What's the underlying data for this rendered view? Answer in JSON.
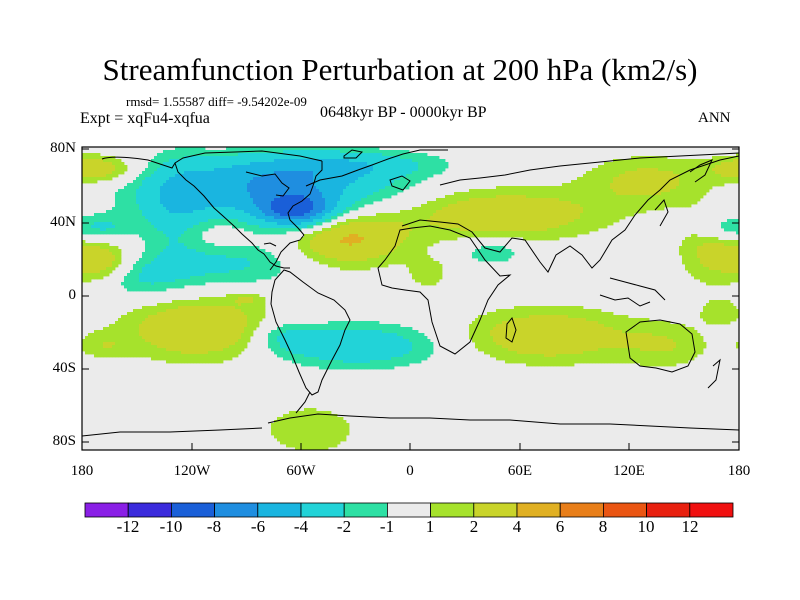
{
  "title": "Streamfunction Perturbation at 200 hPa (km2/s)",
  "stats": "rmsd= 1.55587 diff= -9.54202e-09",
  "experiment": "Expt = xqFu4-xqfua",
  "period": "0648kyr BP - 0000kyr BP",
  "season": "ANN",
  "lat_labels": [
    "80N",
    "40N",
    "0",
    "40S",
    "80S"
  ],
  "lon_labels": [
    "180",
    "120W",
    "60W",
    "0",
    "60E",
    "120E",
    "180"
  ],
  "colorbar": {
    "labels": [
      "-12",
      "-10",
      "-8",
      "-6",
      "-4",
      "-2",
      "-1",
      "1",
      "2",
      "4",
      "6",
      "8",
      "10",
      "12"
    ],
    "colors": [
      "#8a1fe6",
      "#3b2bdc",
      "#1a5fd8",
      "#1f8ee0",
      "#1ab5e0",
      "#22d3d8",
      "#2ee0a4",
      "#ebebeb",
      "#a6e22c",
      "#c9d42a",
      "#e0b023",
      "#e87e19",
      "#ea5512",
      "#e8200f",
      "#f01010"
    ]
  },
  "chart_data": {
    "type": "heatmap",
    "title": "Streamfunction Perturbation at 200 hPa (km2/s)",
    "projection": "cylindrical-equidistant",
    "lon_range": [
      -180,
      180
    ],
    "lat_range": [
      -90,
      90
    ],
    "levels": [
      -12,
      -10,
      -8,
      -6,
      -4,
      -2,
      -1,
      1,
      2,
      4,
      6,
      8,
      10,
      12
    ],
    "blobs": [
      {
        "lon": -80,
        "lat": 62,
        "rlon": 65,
        "rlat": 18,
        "value": -5
      },
      {
        "lon": -62,
        "lat": 52,
        "rlon": 20,
        "rlat": 10,
        "value": -7
      },
      {
        "lon": -65,
        "lat": 75,
        "rlon": 55,
        "rlat": 12,
        "value": -2.5
      },
      {
        "lon": -30,
        "lat": 80,
        "rlon": 50,
        "rlat": 8,
        "value": -2
      },
      {
        "lon": -128,
        "lat": 52,
        "rlon": 18,
        "rlat": 30,
        "value": -2.5
      },
      {
        "lon": -100,
        "lat": 22,
        "rlon": 40,
        "rlat": 15,
        "value": -2.5
      },
      {
        "lon": -148,
        "lat": 12,
        "rlon": 25,
        "rlat": 12,
        "value": -2
      },
      {
        "lon": -168,
        "lat": 42,
        "rlon": 15,
        "rlat": 8,
        "value": -2
      },
      {
        "lon": -173,
        "lat": 77,
        "rlon": 22,
        "rlat": 8,
        "value": 3.5
      },
      {
        "lon": -170,
        "lat": 22,
        "rlon": 16,
        "rlat": 12,
        "value": 3.5
      },
      {
        "lon": -110,
        "lat": 38,
        "rlon": 25,
        "rlat": 14,
        "value": 1.5
      },
      {
        "lon": -35,
        "lat": 36,
        "rlon": 32,
        "rlat": 16,
        "value": 4.5
      },
      {
        "lon": 10,
        "lat": 15,
        "rlon": 12,
        "rlat": 10,
        "value": 1.5
      },
      {
        "lon": -90,
        "lat": 0,
        "rlon": 10,
        "rlat": 4,
        "value": 1.5
      },
      {
        "lon": 50,
        "lat": 50,
        "rlon": 55,
        "rlat": 15,
        "value": 3.5
      },
      {
        "lon": 130,
        "lat": 70,
        "rlon": 35,
        "rlat": 15,
        "value": 2.5
      },
      {
        "lon": 165,
        "lat": 30,
        "rlon": 18,
        "rlat": 22,
        "value": 2.5
      },
      {
        "lon": 45,
        "lat": 28,
        "rlon": 18,
        "rlat": 8,
        "value": -2
      },
      {
        "lon": 170,
        "lat": 42,
        "rlon": 15,
        "rlat": 8,
        "value": -2.5
      },
      {
        "lon": -115,
        "lat": -18,
        "rlon": 40,
        "rlat": 18,
        "value": 4
      },
      {
        "lon": -168,
        "lat": -28,
        "rlon": 14,
        "rlat": 8,
        "value": 1.5
      },
      {
        "lon": -30,
        "lat": -28,
        "rlon": 45,
        "rlat": 13,
        "value": -3.5
      },
      {
        "lon": -70,
        "lat": -22,
        "rlon": 18,
        "rlat": 10,
        "value": -2
      },
      {
        "lon": 75,
        "lat": -22,
        "rlon": 45,
        "rlat": 16,
        "value": 3.5
      },
      {
        "lon": 140,
        "lat": -28,
        "rlon": 25,
        "rlat": 14,
        "value": 1.8
      },
      {
        "lon": 170,
        "lat": -8,
        "rlon": 12,
        "rlat": 8,
        "value": 1.5
      },
      {
        "lon": -55,
        "lat": -78,
        "rlon": 28,
        "rlat": 16,
        "value": 1.8
      }
    ]
  }
}
